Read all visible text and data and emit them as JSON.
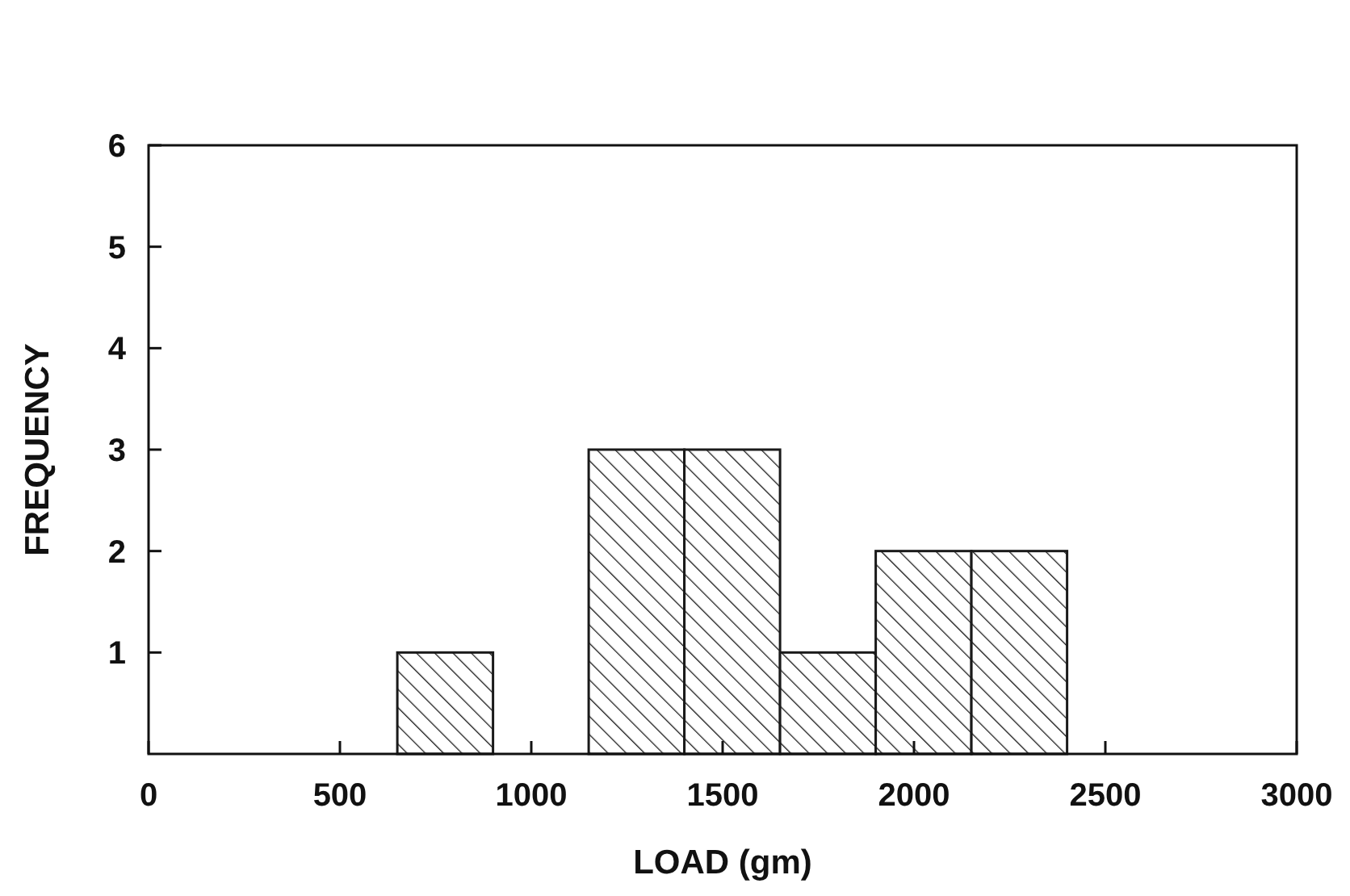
{
  "chart_data": {
    "type": "histogram",
    "xlabel": "LOAD (gm)",
    "ylabel": "FREQUENCY",
    "bins": [
      650,
      900,
      1150,
      1400,
      1650,
      1900,
      2150,
      2400
    ],
    "values": [
      1,
      0,
      3,
      3,
      1,
      2,
      2
    ],
    "color": "#1a1a1a",
    "xlim": [
      0,
      3000
    ],
    "xticks": [
      0,
      500,
      1000,
      1500,
      2000,
      2500,
      3000
    ],
    "ylim": [
      0,
      6
    ],
    "yticks": [
      1,
      2,
      3,
      4,
      5,
      6
    ],
    "grid": false
  }
}
